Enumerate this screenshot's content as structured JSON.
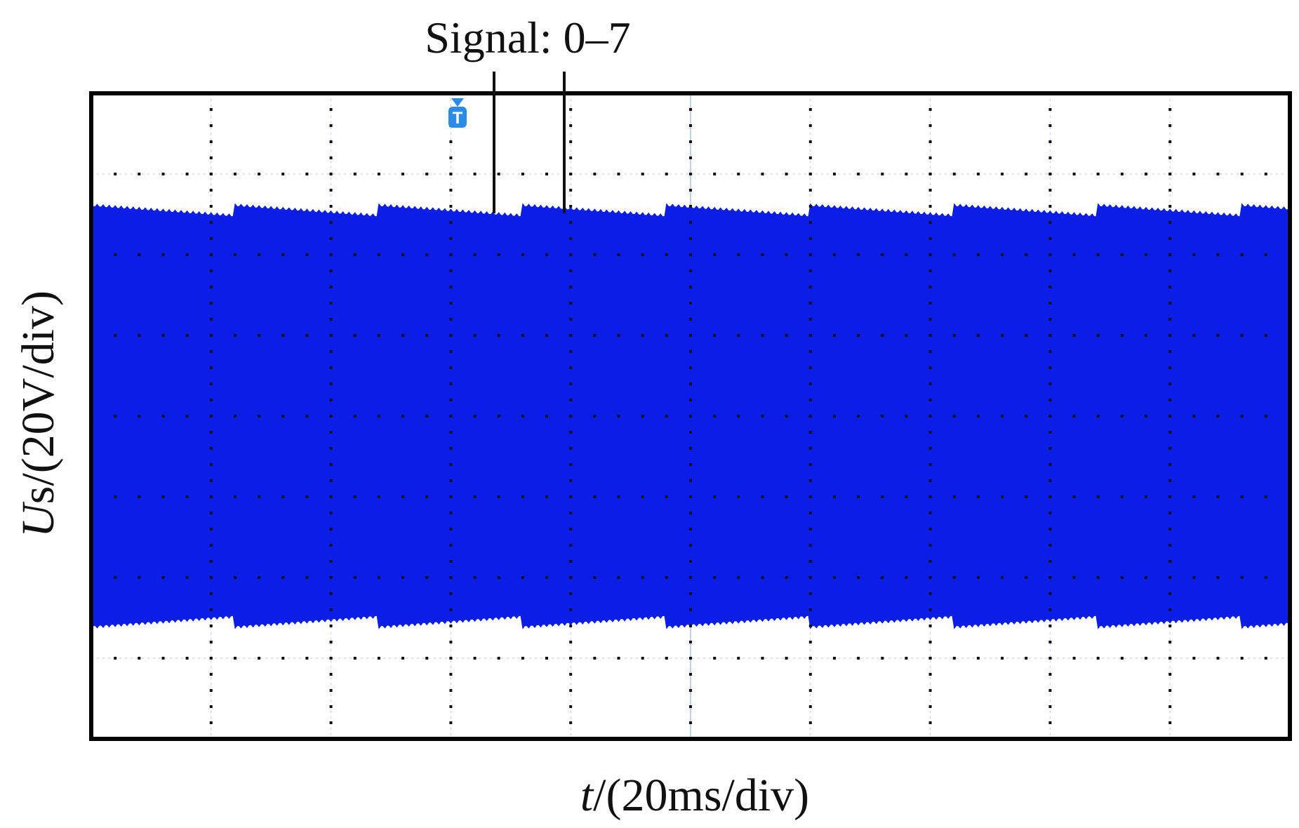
{
  "chart_data": {
    "type": "line",
    "title": "",
    "xlabel": {
      "symbol": "t",
      "unit": "/(20ms/div)"
    },
    "ylabel": {
      "symbol": "U",
      "subscript": "s",
      "unit": "/(20V/div)"
    },
    "annotation": "Signal: 0–7",
    "trigger_marker": "T",
    "divisions": {
      "x": 10,
      "y": 8
    },
    "grid": true,
    "xlim": [
      0,
      10
    ],
    "ylim": [
      -4,
      4
    ],
    "series": [
      {
        "color": "#0a1ee6",
        "envelope_upper": [
          2.6,
          2.47,
          2.6,
          2.47,
          2.6,
          2.47,
          2.6,
          2.47,
          2.6,
          2.47,
          2.6,
          2.47,
          2.6,
          2.47,
          2.6,
          2.47,
          2.6
        ],
        "envelope_lower": [
          -2.6,
          -2.47,
          -2.6,
          -2.47,
          -2.6,
          -2.47,
          -2.6,
          -2.47,
          -2.6,
          -2.47,
          -2.6,
          -2.47,
          -2.6,
          -2.47,
          -2.6,
          -2.47,
          -2.6
        ],
        "envelope_x": [
          0,
          0.6,
          0.6,
          1.2,
          1.2,
          1.8,
          1.8,
          2.4,
          2.4,
          3.0,
          3.0,
          3.6,
          3.6,
          4.2,
          4.2,
          4.8,
          4.8
        ]
      }
    ],
    "colors": {
      "trace": "#0a1ee6",
      "grid_dots": "#111111",
      "grid_lines": "#c8d0e0",
      "frame": "#000000",
      "trigger": "#2a8ce6"
    }
  }
}
